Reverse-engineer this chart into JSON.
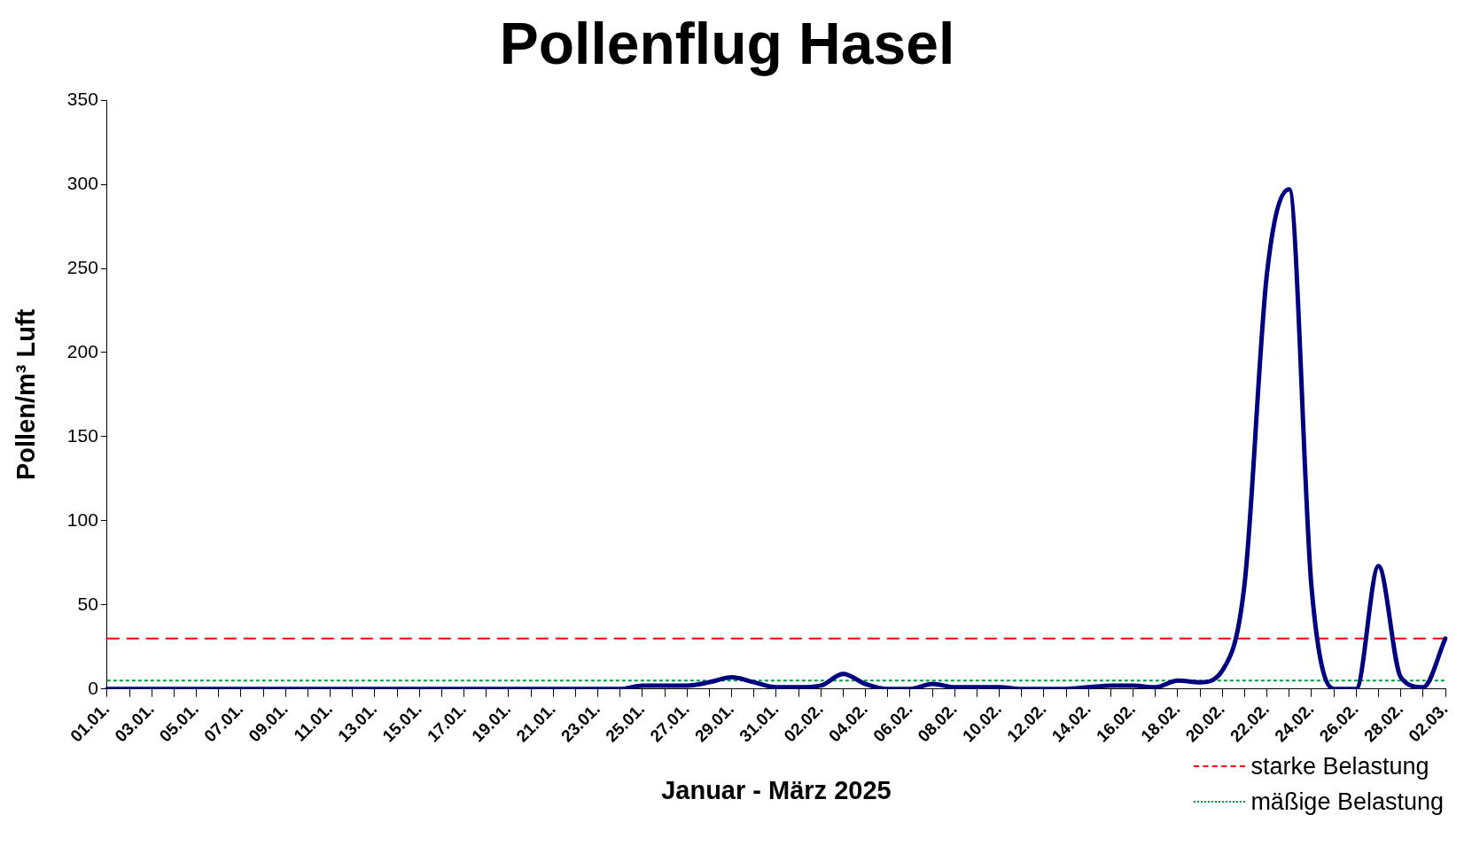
{
  "chart_data": {
    "type": "line",
    "title": "Pollenflug Hasel",
    "xlabel": "Januar - März 2025",
    "ylabel": "Pollen/m³ Luft",
    "categories": [
      "01.01.",
      null,
      "03.01.",
      null,
      "05.01.",
      null,
      "07.01.",
      null,
      "09.01.",
      null,
      "11.01.",
      null,
      "13.01.",
      null,
      "15.01.",
      null,
      "17.01.",
      null,
      "19.01.",
      null,
      "21.01.",
      null,
      "23.01.",
      null,
      "25.01.",
      null,
      "27.01.",
      null,
      "29.01.",
      null,
      "31.01.",
      null,
      "02.02.",
      null,
      "04.02.",
      null,
      "06.02.",
      null,
      "08.02.",
      null,
      "10.02.",
      null,
      "12.02.",
      null,
      "14.02.",
      null,
      "16.02.",
      null,
      "18.02.",
      null,
      "20.02.",
      null,
      "22.02.",
      null,
      "24.02.",
      null,
      "26.02.",
      null,
      "28.02.",
      null,
      "02.03."
    ],
    "series": [
      {
        "color": "#000080",
        "values": [
          0,
          0,
          0,
          0,
          0,
          0,
          0,
          0,
          0,
          0,
          0,
          0,
          0,
          0,
          0,
          0,
          0,
          0,
          0,
          0,
          0,
          0,
          0,
          0,
          2,
          2,
          2,
          4,
          7,
          4,
          1,
          1,
          2,
          9,
          3,
          0,
          0,
          3,
          1,
          1,
          1,
          0,
          0,
          0,
          1,
          2,
          2,
          1,
          5,
          4,
          11,
          63,
          247,
          297,
          60,
          0,
          0,
          73,
          7,
          1,
          30
        ]
      }
    ],
    "ylim": [
      0,
      350
    ],
    "yticks": [
      0,
      50,
      100,
      150,
      200,
      250,
      300,
      350
    ],
    "grid": false,
    "marker": "none",
    "line_style": "solid",
    "legend": "bottom right",
    "ref_lines": [
      {
        "axis": "y",
        "value": 30,
        "label": "starke Belastung",
        "color": "#ff0000",
        "line_style": "dashed"
      },
      {
        "axis": "y",
        "value": 5,
        "label": "mäßige Belastung",
        "color": "#00a040",
        "line_style": "dotted"
      }
    ]
  }
}
